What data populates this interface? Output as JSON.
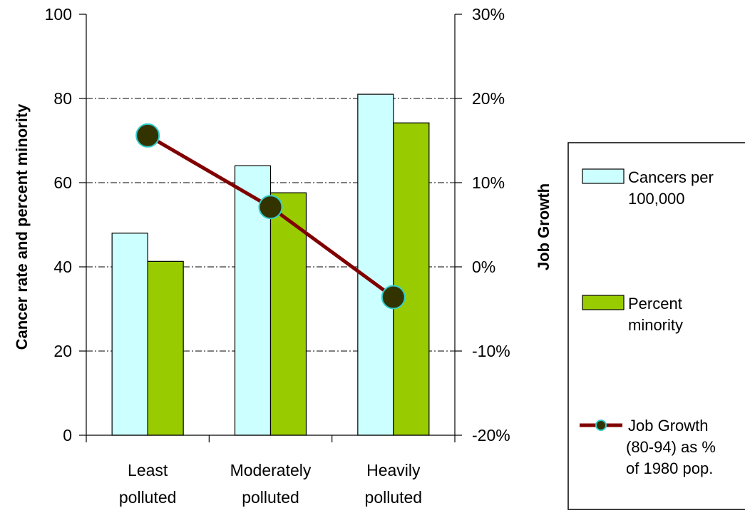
{
  "chart_data": {
    "type": "bar",
    "categories": [
      [
        "Least",
        "polluted"
      ],
      [
        "Moderately",
        "polluted"
      ],
      [
        "Heavily",
        "polluted"
      ]
    ],
    "series": [
      {
        "name": "Cancers per 100,000",
        "legend_lines": [
          "Cancers per",
          "100,000"
        ],
        "values": [
          48,
          64,
          81
        ],
        "color": "#ccffff",
        "axis": "left"
      },
      {
        "name": "Percent minority",
        "legend_lines": [
          "Percent",
          "minority"
        ],
        "values": [
          41.3,
          57.6,
          74.2
        ],
        "color": "#99cc00",
        "axis": "left"
      }
    ],
    "line_series": {
      "name": "Job Growth (80-94) as % of 1980 pop.",
      "legend_lines": [
        "Job Growth",
        "(80-94) as %",
        "of 1980 pop."
      ],
      "values": [
        15.6,
        7.1,
        -3.6
      ],
      "line_color": "#800000",
      "marker_color": "#333300",
      "marker_edge": "#33cccc",
      "axis": "right"
    },
    "ylabel": "Cancer rate and percent minority",
    "y2label": "Job Growth",
    "ylim": [
      0,
      100
    ],
    "y2lim": [
      -20,
      30
    ],
    "yticks": [
      "0",
      "20",
      "40",
      "60",
      "80",
      "100"
    ],
    "y2ticks": [
      "-20%",
      "-10%",
      "0%",
      "10%",
      "20%",
      "30%"
    ],
    "grid": "dash-dot horizontal",
    "legend_position": "right"
  }
}
